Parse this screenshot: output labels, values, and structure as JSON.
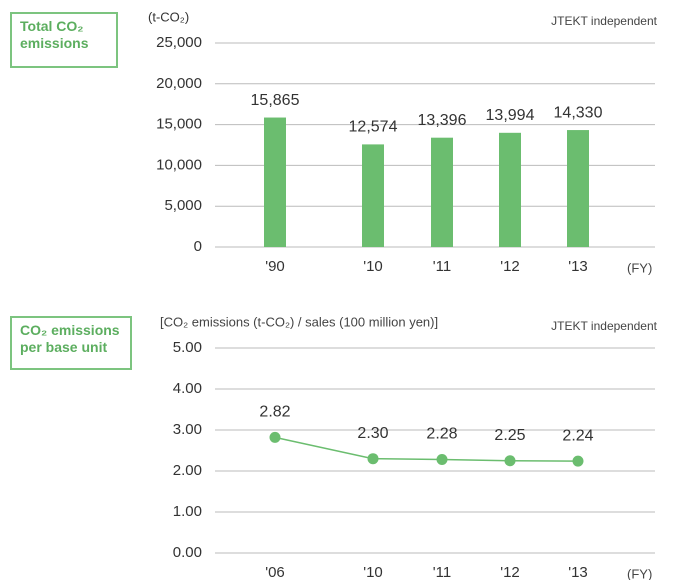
{
  "chart_data": [
    {
      "type": "bar",
      "label": "Total CO₂ emissions",
      "unit_label": "(t-CO₂)",
      "note": "JTEKT independent",
      "x_unit": "(FY)",
      "categories": [
        "'90",
        "'10",
        "'11",
        "'12",
        "'13"
      ],
      "values": [
        15865,
        12574,
        13396,
        13994,
        14330
      ],
      "value_labels": [
        "15,865",
        "12,574",
        "13,396",
        "13,994",
        "14,330"
      ],
      "color": "#6bbd6f",
      "ylim": [
        0,
        25000
      ],
      "yticks": [
        0,
        {
          "value": 5000,
          "label": "5,000"
        },
        {
          "value": 10000,
          "label": "10,000"
        },
        {
          "value": 15000,
          "label": "15,000"
        },
        {
          "value": 20000,
          "label": "20,000"
        },
        {
          "value": 25000,
          "label": "25,000"
        }
      ],
      "grid": true
    },
    {
      "type": "line",
      "label": "CO₂ emissions per base unit",
      "unit_label": "[CO₂ emissions (t-CO₂) / sales (100 million yen)]",
      "note": "JTEKT independent",
      "x_unit": "(FY)",
      "categories": [
        "'06",
        "'10",
        "'11",
        "'12",
        "'13"
      ],
      "values": [
        2.82,
        2.3,
        2.28,
        2.25,
        2.24
      ],
      "value_labels": [
        "2.82",
        "2.30",
        "2.28",
        "2.25",
        "2.24"
      ],
      "color": "#6bbd6f",
      "ylim": [
        0,
        5
      ],
      "yticks": [
        {
          "value": 0,
          "label": "0.00"
        },
        {
          "value": 1,
          "label": "1.00"
        },
        {
          "value": 2,
          "label": "2.00"
        },
        {
          "value": 3,
          "label": "3.00"
        },
        {
          "value": 4,
          "label": "4.00"
        },
        {
          "value": 5,
          "label": "5.00"
        }
      ],
      "grid": true
    }
  ]
}
